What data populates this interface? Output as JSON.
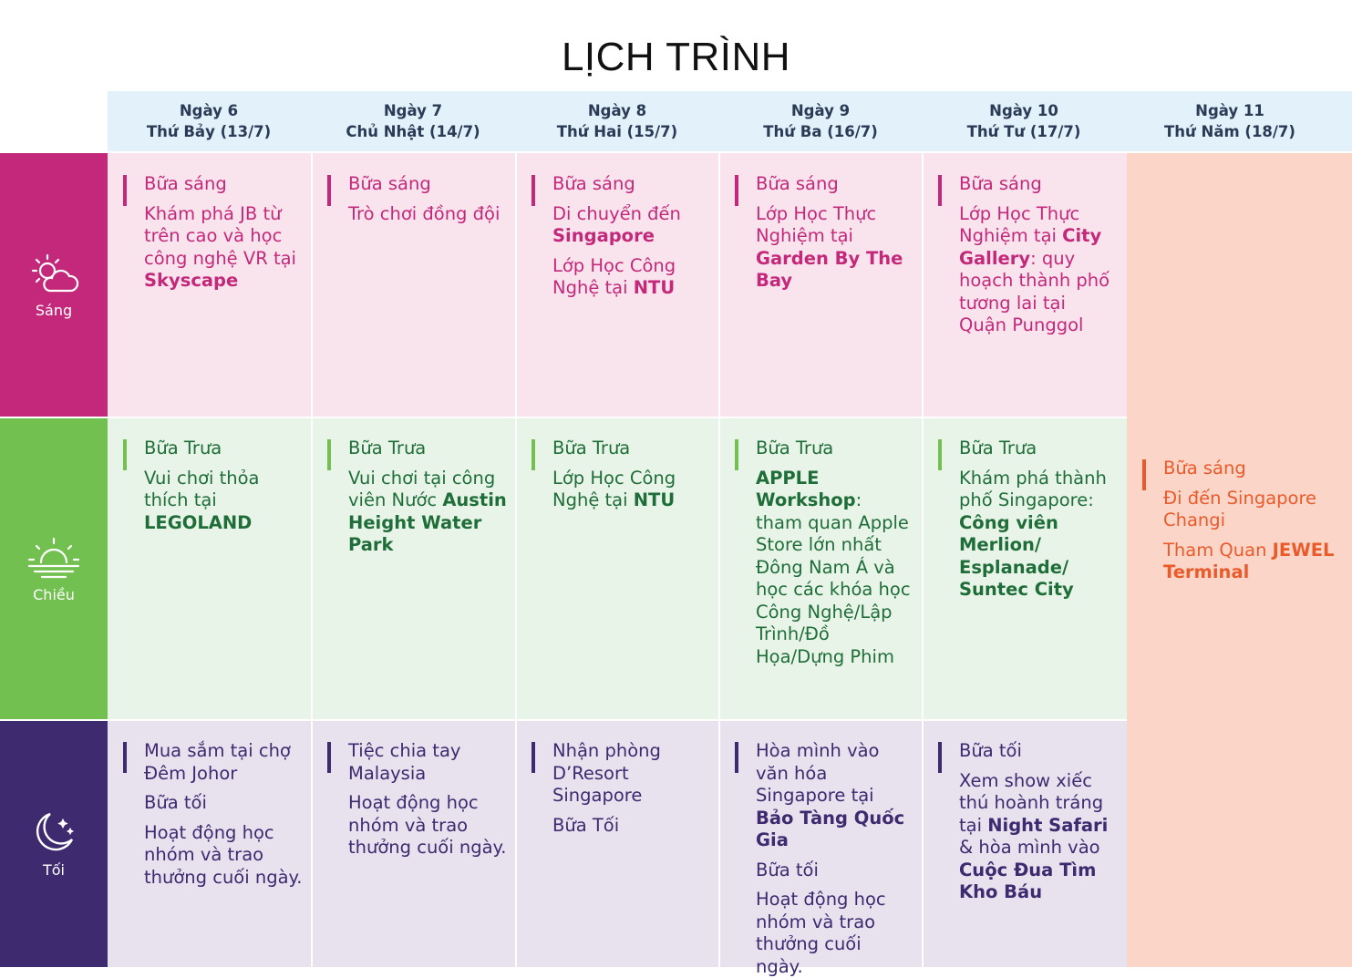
{
  "title": "LỊCH TRÌNH",
  "periods": {
    "morning": "Sáng",
    "afternoon": "Chiều",
    "evening": "Tối"
  },
  "days": [
    {
      "day": "Ngày 6",
      "date": "Thứ Bảy (13/7)"
    },
    {
      "day": "Ngày 7",
      "date": "Chủ Nhật (14/7)"
    },
    {
      "day": "Ngày 8",
      "date": "Thứ Hai (15/7)"
    },
    {
      "day": "Ngày 9",
      "date": "Thứ Ba (16/7)"
    },
    {
      "day": "Ngày 10",
      "date": "Thứ Tư (17/7)"
    },
    {
      "day": "Ngày 11",
      "date": "Thứ Năm (18/7)"
    }
  ],
  "morning": {
    "d6": {
      "l1": "Bữa sáng",
      "a": "Khám phá JB từ trên cao và học công nghệ VR tại ",
      "b": "Skyscape"
    },
    "d7": {
      "l1": "Bữa sáng",
      "a": "Trò chơi đồng đội"
    },
    "d8": {
      "l1": "Bữa sáng",
      "a": "Di chuyển đến ",
      "b": "Singapore",
      "c": "Lớp Học Công Nghệ tại ",
      "d": "NTU"
    },
    "d9": {
      "l1": "Bữa sáng",
      "a": "Lớp Học Thực Nghiệm tại ",
      "b": "Garden By The Bay"
    },
    "d10": {
      "l1": "Bữa sáng",
      "a": "Lớp Học Thực Nghiệm tại ",
      "b": "City Gallery",
      "c": ": quy hoạch thành phố tương lai tại Quận Punggol"
    }
  },
  "afternoon": {
    "d6": {
      "l1": "Bữa Trưa",
      "a": "Vui chơi thỏa thích tại ",
      "b": "LEGOLAND"
    },
    "d7": {
      "l1": "Bữa Trưa",
      "a": "Vui chơi tại công viên Nước ",
      "b": "Austin Height Water Park"
    },
    "d8": {
      "l1": "Bữa Trưa",
      "a": "Lớp Học Công Nghệ tại ",
      "b": "NTU"
    },
    "d9": {
      "l1": "Bữa Trưa",
      "b": "APPLE Workshop",
      "a": ": tham quan Apple Store lớn nhất Đông Nam Á và học các khóa học Công Nghệ/Lập Trình/Đồ Họa/Dựng Phim"
    },
    "d10": {
      "l1": "Bữa Trưa",
      "a": "Khám phá thành phố Singapore: ",
      "b": "Công viên Merlion/ Esplanade/ Suntec City"
    }
  },
  "evening": {
    "d6": {
      "l1": "Mua sắm tại chợ Đêm Johor",
      "l2": "Bữa tối",
      "l3": "Hoạt động học nhóm và trao thưởng cuối ngày."
    },
    "d7": {
      "l1": "Tiệc chia tay Malaysia",
      "l2": "Hoạt động học nhóm và trao thưởng cuối ngày."
    },
    "d8": {
      "l1": "Nhận phòng D’Resort Singapore",
      "l2": "Bữa Tối"
    },
    "d9": {
      "l1": "Hòa mình vào văn hóa Singapore tại ",
      "b": "Bảo Tàng Quốc Gia",
      "l2": "Bữa tối",
      "l3": "Hoạt động học nhóm và trao thưởng cuối ngày."
    },
    "d10": {
      "l1": "Bữa tối",
      "a": "Xem show xiếc thú hoành tráng tại ",
      "b": "Night Safari",
      "c": " & hòa mình vào ",
      "d": "Cuộc Đua Tìm Kho Báu"
    }
  },
  "day11": {
    "l1": "Bữa sáng",
    "l2": "Đi đến Singapore Changi",
    "a": "Tham Quan ",
    "b": "JEWEL Terminal"
  },
  "colors": {
    "morning_side": "#c4287a",
    "morning_bg": "#f9e4ee",
    "morning_text": "#c4287a",
    "afternoon_side": "#72c04f",
    "afternoon_bg": "#e8f4e7",
    "afternoon_text": "#1f6e3a",
    "evening_side": "#3d2a6f",
    "evening_bg": "#e8e2ef",
    "evening_text": "#3d2a6f",
    "day11_bg": "#fbd6c8",
    "day11_text": "#ea5b2c",
    "header_bg": "#e3f1fb"
  }
}
